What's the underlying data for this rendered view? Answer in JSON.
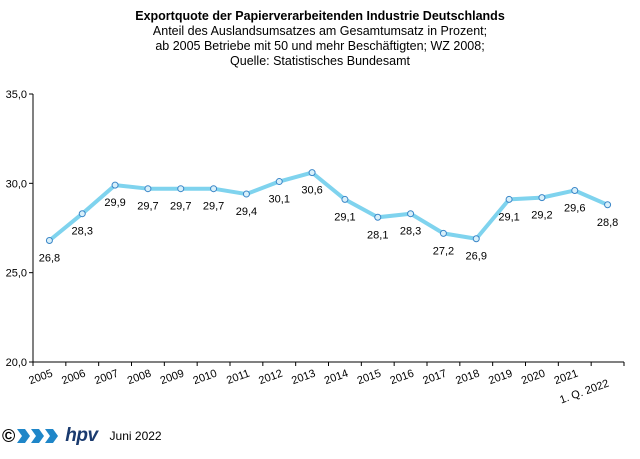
{
  "titles": {
    "main": "Exportquote der Papierverarbeitenden Industrie Deutschlands",
    "line1": "Anteil des Auslandsumsatzes am Gesamtumsatz in Prozent;",
    "line2": "ab 2005 Betriebe mit 50 und mehr Beschäftigten; WZ 2008;",
    "line3": "Quelle: Statistisches Bundesamt"
  },
  "footer": {
    "copyright": "©",
    "brand": "hpv",
    "date": "Juni 2022"
  },
  "colors": {
    "line": "#7fd3ee",
    "marker_stroke": "#3a86c8",
    "marker_fill": "#d8f0fa",
    "brand": "#1a3a6e"
  },
  "chart_data": {
    "type": "line",
    "categories": [
      "2005",
      "2006",
      "2007",
      "2008",
      "2009",
      "2010",
      "2011",
      "2012",
      "2013",
      "2014",
      "2015",
      "2016",
      "2017",
      "2018",
      "2019",
      "2020",
      "2021",
      "1. Q. 2022"
    ],
    "values": [
      26.8,
      28.3,
      29.9,
      29.7,
      29.7,
      29.7,
      29.4,
      30.1,
      30.6,
      29.1,
      28.1,
      28.3,
      27.2,
      26.9,
      29.1,
      29.2,
      29.6,
      28.8
    ],
    "value_labels": [
      "26,8",
      "28,3",
      "29,9",
      "29,7",
      "29,7",
      "29,7",
      "29,4",
      "30,1",
      "30,6",
      "29,1",
      "28,1",
      "28,3",
      "27,2",
      "26,9",
      "29,1",
      "29,2",
      "29,6",
      "28,8"
    ],
    "label_position": [
      "below",
      "below",
      "below",
      "below",
      "below",
      "below",
      "below",
      "below",
      "below",
      "below",
      "below",
      "below",
      "below",
      "below",
      "below",
      "below",
      "below",
      "below"
    ],
    "ylim": [
      20,
      35
    ],
    "yticks": [
      20,
      25,
      30,
      35
    ],
    "ytick_labels": [
      "20,0",
      "25,0",
      "30,0",
      "35,0"
    ],
    "grid": false,
    "legend": "none",
    "title": "Exportquote der Papierverarbeitenden Industrie Deutschlands"
  }
}
